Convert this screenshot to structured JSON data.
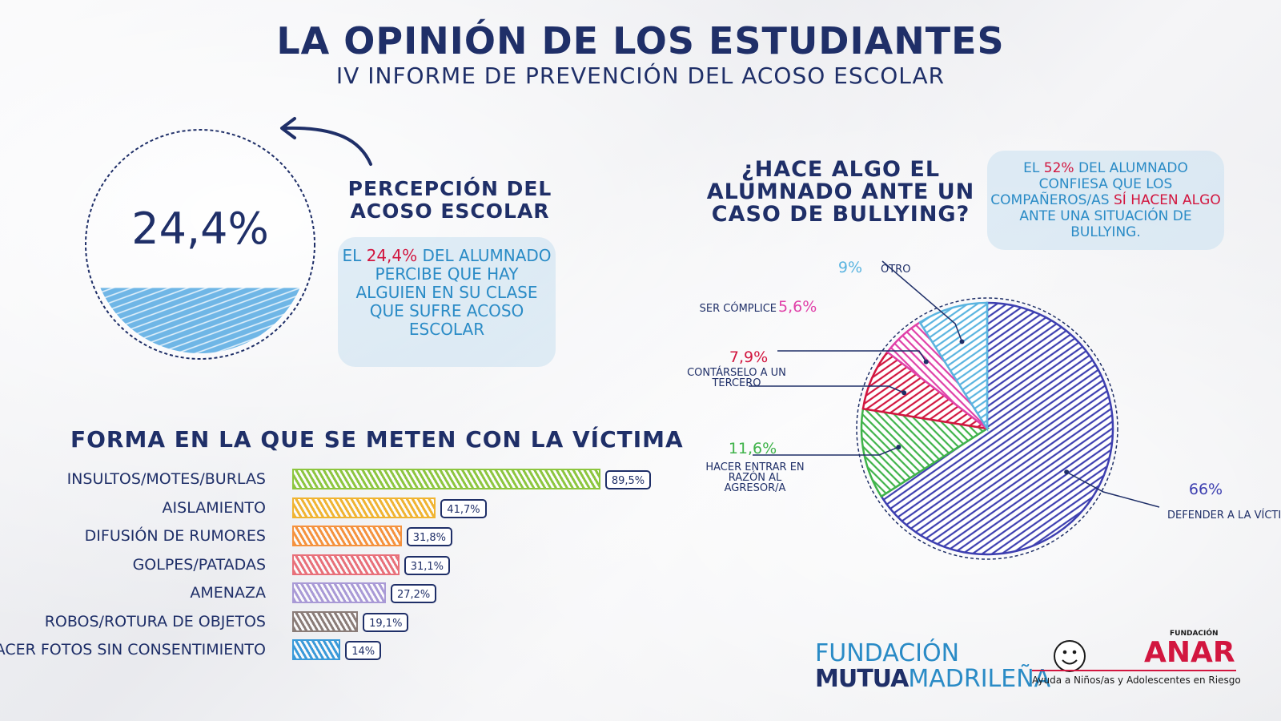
{
  "header": {
    "title": "LA OPINIÓN DE LOS ESTUDIANTES",
    "subtitle": "IV INFORME DE PREVENCIÓN DEL ACOSO ESCOLAR"
  },
  "perception": {
    "value": "24,4%",
    "fill_fraction": 0.3,
    "title": "PERCEPCIÓN DEL ACOSO ESCOLAR",
    "note_prefix": "EL",
    "note_highlight": "24,4%",
    "note_suffix": "DEL ALUMNADO PERCIBE QUE HAY ALGUIEN EN SU CLASE QUE SUFRE ACOSO ESCOLAR"
  },
  "pie_note": {
    "prefix": "EL",
    "highlight1": "52%",
    "middle": "DEL ALUMNADO CONFIESA QUE LOS COMPAÑEROS/AS",
    "highlight2": "SÍ HACEN ALGO",
    "suffix": "ANTE UNA SITUACIÓN DE BULLYING."
  },
  "colors": {
    "navy": "#1f2f68",
    "blue_note": "#2a8bc6",
    "red": "#d2163f"
  },
  "chart_data": [
    {
      "type": "bar",
      "title": "FORMA EN LA QUE SE METEN CON LA VÍCTIMA",
      "categories": [
        "INSULTOS/MOTES/BURLAS",
        "AISLAMIENTO",
        "DIFUSIÓN DE RUMORES",
        "GOLPES/PATADAS",
        "AMENAZA",
        "ROBOS/ROTURA DE OBJETOS",
        "HACER FOTOS SIN CONSENTIMIENTO"
      ],
      "values": [
        89.5,
        41.7,
        31.8,
        31.1,
        27.2,
        19.1,
        14
      ],
      "value_labels": [
        "89,5%",
        "41,7%",
        "31,8%",
        "31,1%",
        "27,2%",
        "19,1%",
        "14%"
      ],
      "colors": [
        "#8dc63f",
        "#f0b432",
        "#f5923e",
        "#e8707a",
        "#a99ad6",
        "#8a7c78",
        "#3a9ad9"
      ],
      "orientation": "horizontal",
      "xlim": [
        0,
        100
      ]
    },
    {
      "type": "pie",
      "title": "¿HACE ALGO EL ALUMNADO ANTE UN CASO DE BULLYING?",
      "slices": [
        {
          "label": "DEFENDER A LA VÍCTIMA",
          "value": 66,
          "value_label": "66%",
          "color": "#3d3fb0"
        },
        {
          "label": "HACER ENTRAR EN RAZÓN AL AGRESOR/A",
          "value": 11.6,
          "value_label": "11,6%",
          "color": "#3fb34a"
        },
        {
          "label": "CONTÁRSELO A UN TERCERO",
          "value": 7.9,
          "value_label": "7,9%",
          "color": "#d2163f"
        },
        {
          "label": "SER CÓMPLICE",
          "value": 5.6,
          "value_label": "5,6%",
          "color": "#e040a8"
        },
        {
          "label": "OTRO",
          "value": 9,
          "value_label": "9%",
          "color": "#5ab4e0"
        }
      ]
    }
  ],
  "logos": {
    "mm_line1": "FUNDACIÓN",
    "mm_line2a": "MUTUA",
    "mm_line2b": "MADRILEÑA",
    "anar_small": "FUNDACIÓN",
    "anar_big": "ANAR",
    "anar_tagline": "Ayuda a Niños/as y Adolescentes en Riesgo"
  }
}
